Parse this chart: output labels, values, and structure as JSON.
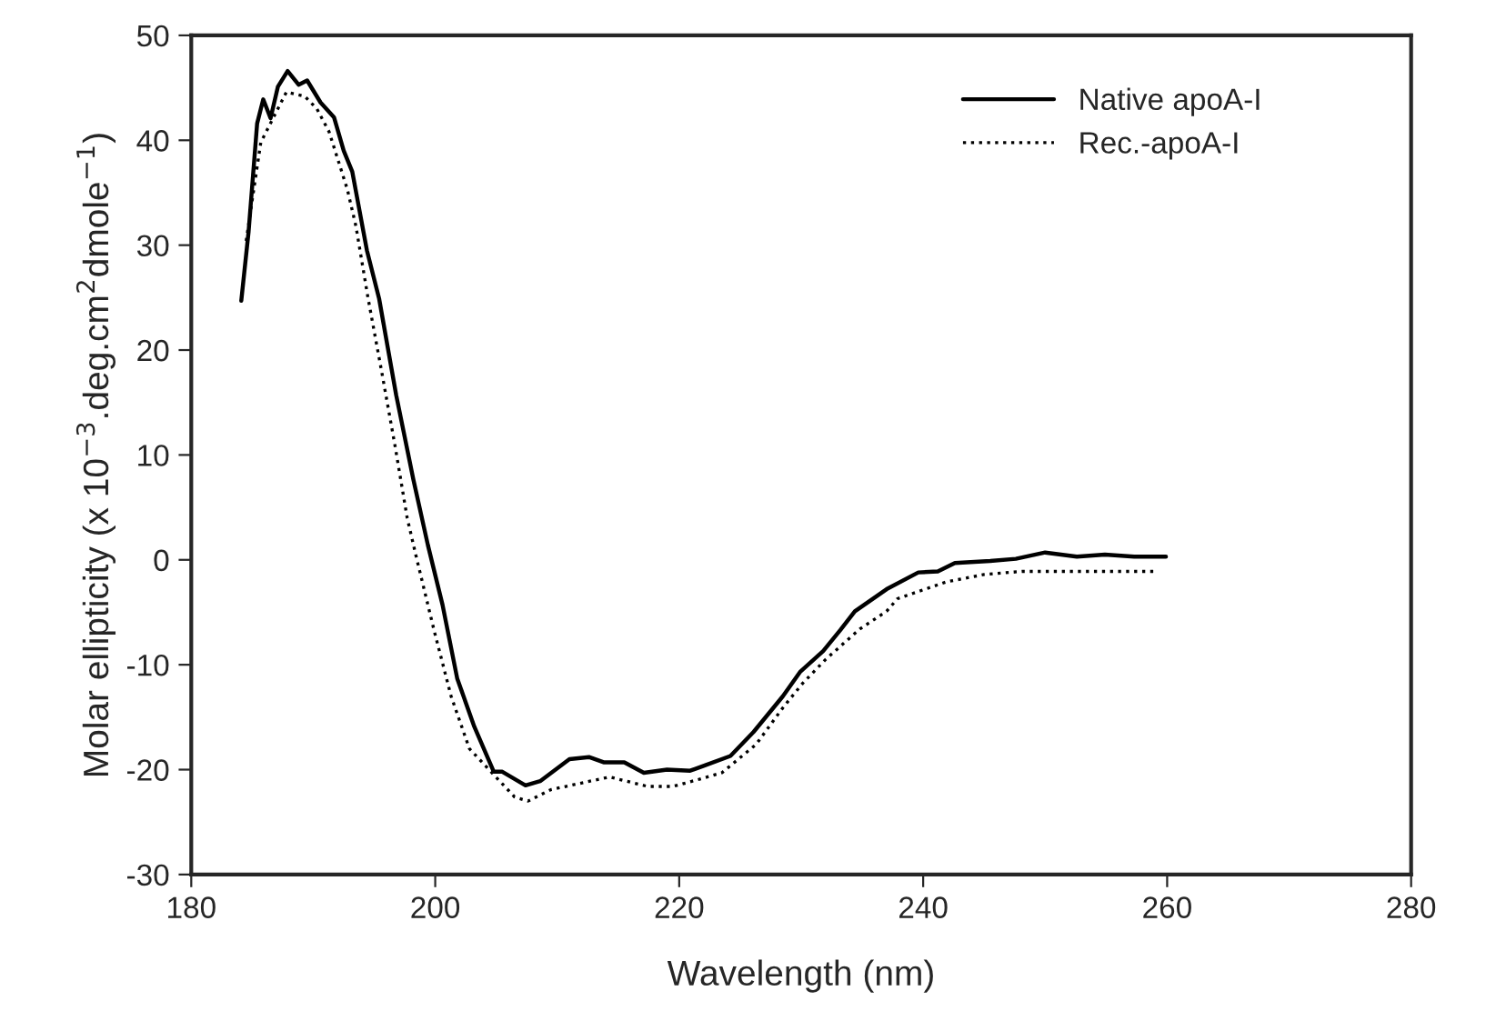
{
  "chart_data": {
    "type": "line",
    "xlabel": "Wavelength (nm)",
    "ylabel": "Molar ellipticity (x 10$^{−3}$.deg.cm$^{2}$dmole$^{−1}$)",
    "xlim": [
      180,
      280
    ],
    "xticks": [
      180,
      200,
      220,
      240,
      260,
      280
    ],
    "ylim": [
      -30,
      50
    ],
    "yticks": [
      -30,
      -20,
      -10,
      0,
      10,
      20,
      30,
      40,
      50
    ],
    "grid": false,
    "legend": "top right",
    "marker": "none",
    "series": [
      {
        "name": "Native apoA-I",
        "color": "#000000",
        "line_style": "solid",
        "x": [
          184.1,
          184.7,
          185.4,
          185.9,
          186.5,
          187.1,
          187.9,
          188.8,
          189.5,
          190.6,
          191.7,
          192.5,
          193.2,
          194.4,
          195.4,
          196.8,
          198.2,
          199.4,
          200.6,
          201.8,
          203.2,
          204.8,
          205.5,
          207.4,
          208.6,
          211,
          212.6,
          213.8,
          215.5,
          217.1,
          219,
          220.9,
          222.1,
          224.2,
          226.1,
          228.5,
          229.9,
          231.8,
          233.2,
          234.4,
          237,
          239.6,
          241.2,
          242.6,
          245.5,
          247.6,
          250,
          252.6,
          254.9,
          257.3,
          259.9
        ],
        "values": [
          24.7,
          31.3,
          41.6,
          43.9,
          42.1,
          45.1,
          46.6,
          45.3,
          45.7,
          43.6,
          42.2,
          39.0,
          37.0,
          29.5,
          24.9,
          15.7,
          7.7,
          1.4,
          -4.3,
          -11.3,
          -15.9,
          -20.2,
          -20.2,
          -21.5,
          -21.1,
          -19.0,
          -18.8,
          -19.3,
          -19.3,
          -20.3,
          -20.0,
          -20.1,
          -19.6,
          -18.7,
          -16.4,
          -13.0,
          -10.7,
          -8.7,
          -6.7,
          -4.9,
          -2.8,
          -1.2,
          -1.1,
          -0.3,
          -0.1,
          0.1,
          0.7,
          0.3,
          0.5,
          0.3,
          0.3
        ]
      },
      {
        "name": "Rec.-apoA-I",
        "color": "#000000",
        "line_style": "dotted",
        "x": [
          184.5,
          185.7,
          187.8,
          189.3,
          190.3,
          191.3,
          192.8,
          193.5,
          194.5,
          195.6,
          196.7,
          197.7,
          198.4,
          199.9,
          201.3,
          202.8,
          206.5,
          207.6,
          209.5,
          214.3,
          217.4,
          219.5,
          221.4,
          223.5,
          226.3,
          228.5,
          230.1,
          232,
          234.8,
          237,
          237.9,
          241.9,
          245,
          248.1,
          258.2,
          259.2
        ],
        "values": [
          30.4,
          39.8,
          44.6,
          44.2,
          43.0,
          40.8,
          35.3,
          31.8,
          24.9,
          18.0,
          10.9,
          4.0,
          0.5,
          -6.7,
          -13.0,
          -18.0,
          -22.6,
          -23.0,
          -21.9,
          -20.7,
          -21.6,
          -21.6,
          -21.0,
          -20.3,
          -17.6,
          -14.1,
          -11.8,
          -9.5,
          -6.6,
          -4.9,
          -3.7,
          -2.1,
          -1.4,
          -1.1,
          -1.1,
          -1.1
        ]
      }
    ]
  }
}
